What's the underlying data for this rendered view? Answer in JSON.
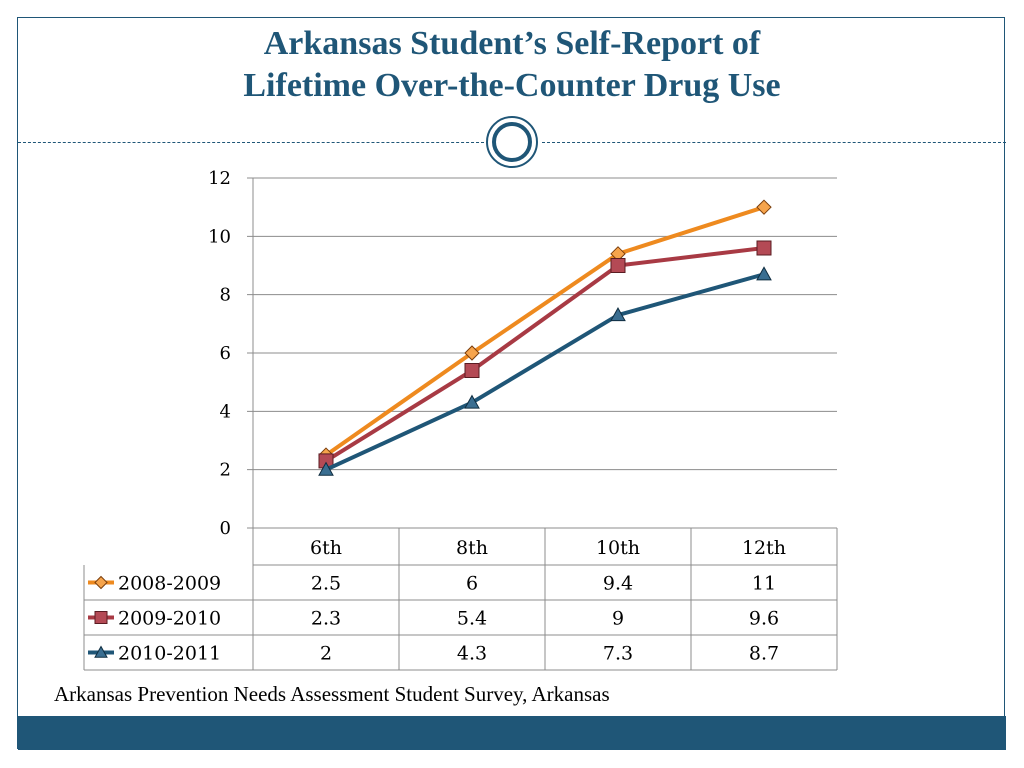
{
  "slide": {
    "title_line1": "Arkansas Student’s Self-Report of",
    "title_line2": "Lifetime Over-the-Counter Drug Use",
    "source": "Arkansas Prevention Needs Assessment Student Survey, Arkansas"
  },
  "chart_data": {
    "type": "line",
    "title": "",
    "xlabel": "",
    "ylabel": "",
    "categories": [
      "6th",
      "8th",
      "10th",
      "12th"
    ],
    "ylim": [
      0,
      12
    ],
    "yticks": [
      "0",
      "2",
      "4",
      "6",
      "8",
      "10",
      "12"
    ],
    "grid": true,
    "legend": "data-table",
    "series": [
      {
        "name": "2008-2009",
        "values": [
          2.5,
          6,
          9.4,
          11
        ],
        "labels": [
          "2.5",
          "6",
          "9.4",
          "11"
        ],
        "color": "#ee8a1f",
        "marker": "diamond"
      },
      {
        "name": "2009-2010",
        "values": [
          2.3,
          5.4,
          9,
          9.6
        ],
        "labels": [
          "2.3",
          "5.4",
          "9",
          "9.6"
        ],
        "color": "#a83a44",
        "marker": "square"
      },
      {
        "name": "2010-2011",
        "values": [
          2,
          4.3,
          7.3,
          8.7
        ],
        "labels": [
          "2",
          "4.3",
          "7.3",
          "8.7"
        ],
        "color": "#1f5677",
        "marker": "triangle"
      }
    ]
  }
}
